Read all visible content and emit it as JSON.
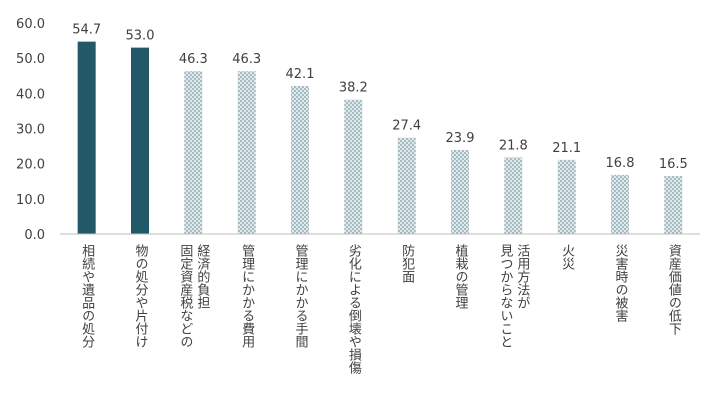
{
  "chart_data": {
    "type": "bar",
    "title": "",
    "xlabel": "",
    "ylabel": "",
    "ylim": [
      0,
      60
    ],
    "yticks": [
      "0.0",
      "10.0",
      "20.0",
      "30.0",
      "40.0",
      "50.0",
      "60.0"
    ],
    "grid": false,
    "legend": "none",
    "colors": {
      "solid": "#215968",
      "patterned": "#8aa8b0",
      "pattern_bg": "#dfe8ea"
    },
    "categories": [
      [
        "相続や遺品の処分"
      ],
      [
        "物の処分や片付け"
      ],
      [
        "固定資産税などの",
        "経済的負担"
      ],
      [
        "管理にかかる費用"
      ],
      [
        "管理にかかる手間"
      ],
      [
        "劣化による倒壊や損傷"
      ],
      [
        "防犯面"
      ],
      [
        "植栽の管理"
      ],
      [
        "見つからないこと",
        "活用方法が"
      ],
      [
        "火災"
      ],
      [
        "災害時の被害"
      ],
      [
        "資産価値の低下"
      ]
    ],
    "values": [
      54.7,
      53.0,
      46.3,
      46.3,
      42.1,
      38.2,
      27.4,
      23.9,
      21.8,
      21.1,
      16.8,
      16.5
    ],
    "value_labels": [
      "54.7",
      "53.0",
      "46.3",
      "46.3",
      "42.1",
      "38.2",
      "27.4",
      "23.9",
      "21.8",
      "21.1",
      "16.8",
      "16.5"
    ],
    "styles": [
      "solid",
      "solid",
      "patterned",
      "patterned",
      "patterned",
      "patterned",
      "patterned",
      "patterned",
      "patterned",
      "patterned",
      "patterned",
      "patterned"
    ]
  }
}
